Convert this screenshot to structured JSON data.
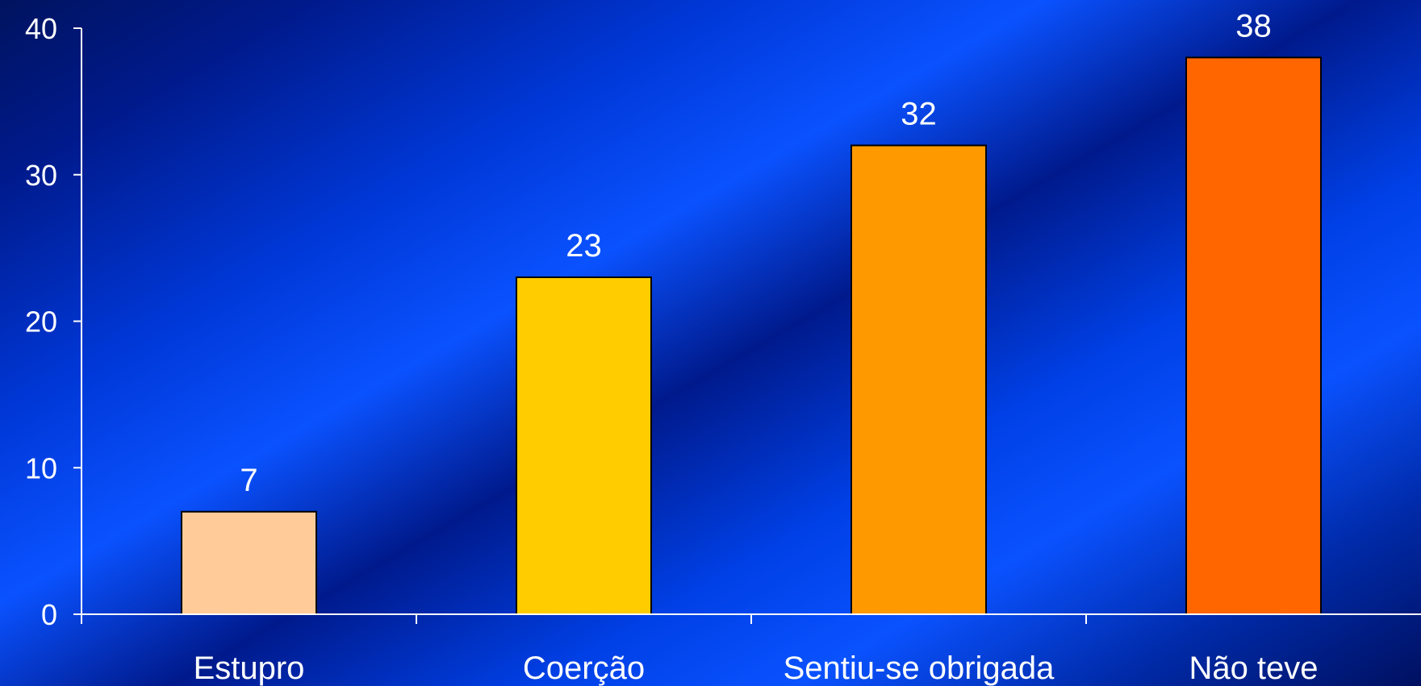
{
  "chart_data": {
    "type": "bar",
    "categories": [
      "Estupro",
      "Coerção",
      "Sentiu-se obrigada",
      "Não teve"
    ],
    "values": [
      7,
      23,
      32,
      38
    ],
    "data_labels": [
      "7",
      "23",
      "32",
      "38"
    ],
    "y_ticks": [
      0,
      10,
      20,
      30,
      40
    ],
    "ylim": [
      0,
      40
    ],
    "grid": false,
    "legend": "none",
    "bar_colors": [
      "#ffcc99",
      "#ffcc00",
      "#ff9900",
      "#ff6600"
    ],
    "axis_color": "#ffffff",
    "background_colors": [
      "#001a8c",
      "#0a52ff"
    ]
  }
}
